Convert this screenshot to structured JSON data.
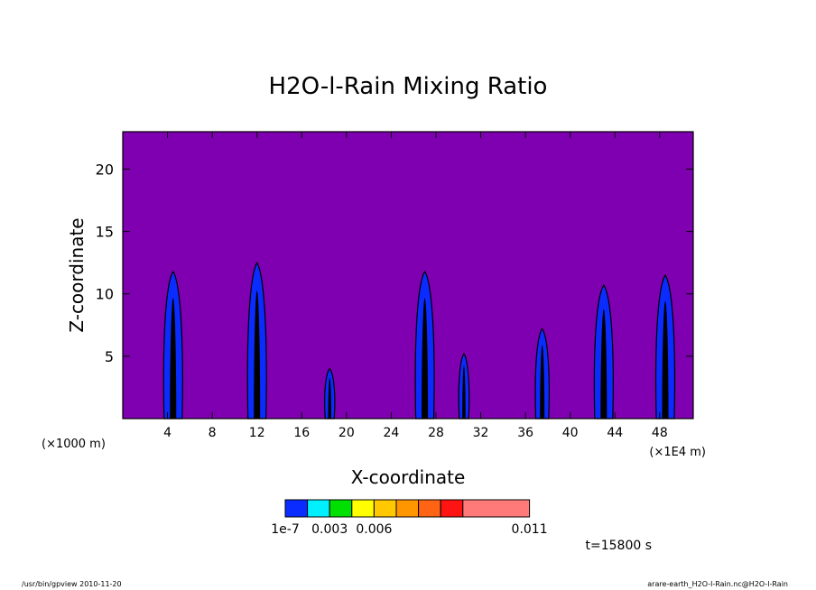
{
  "chart_data": {
    "type": "heatmap",
    "title": "H2O-l-Rain Mixing Ratio",
    "xlabel": "X-coordinate",
    "ylabel": "Z-coordinate",
    "x_unit_left": "(×1000 m)",
    "x_unit_right": "(×1E4 m)",
    "xlim": [
      0,
      51
    ],
    "ylim": [
      0,
      23
    ],
    "xticks": [
      4,
      8,
      12,
      16,
      20,
      24,
      28,
      32,
      36,
      40,
      44,
      48
    ],
    "yticks": [
      5,
      10,
      15,
      20
    ],
    "background_value": "below 1e-7",
    "colorbar": {
      "colors": [
        "#0a2cff",
        "#00f0ff",
        "#00e000",
        "#ffff00",
        "#ffc800",
        "#ff9600",
        "#ff6414",
        "#ff1414",
        "#ff7a78"
      ],
      "labels": [
        {
          "text": "1e-7",
          "boundary": 0
        },
        {
          "text": "0.003",
          "boundary": 2
        },
        {
          "text": "0.006",
          "boundary": 4
        },
        {
          "text": "0.011",
          "boundary": 9
        }
      ]
    },
    "rain_columns": [
      {
        "x": 4.5,
        "top": 11.8
      },
      {
        "x": 12.0,
        "top": 12.5
      },
      {
        "x": 18.5,
        "top": 4.0
      },
      {
        "x": 27.0,
        "top": 11.8
      },
      {
        "x": 30.5,
        "top": 5.2
      },
      {
        "x": 37.5,
        "top": 7.2
      },
      {
        "x": 43.0,
        "top": 10.7
      },
      {
        "x": 48.5,
        "top": 11.5
      }
    ]
  },
  "time_label": "t=15800 s",
  "footer_left": "/usr/bin/gpview   2010-11-20",
  "footer_right": "arare-earth_H2O-l-Rain.nc@H2O-l-Rain",
  "colors": {
    "background_field": "#7f00b0",
    "rain": "#0a2cff",
    "core": "#000000"
  }
}
